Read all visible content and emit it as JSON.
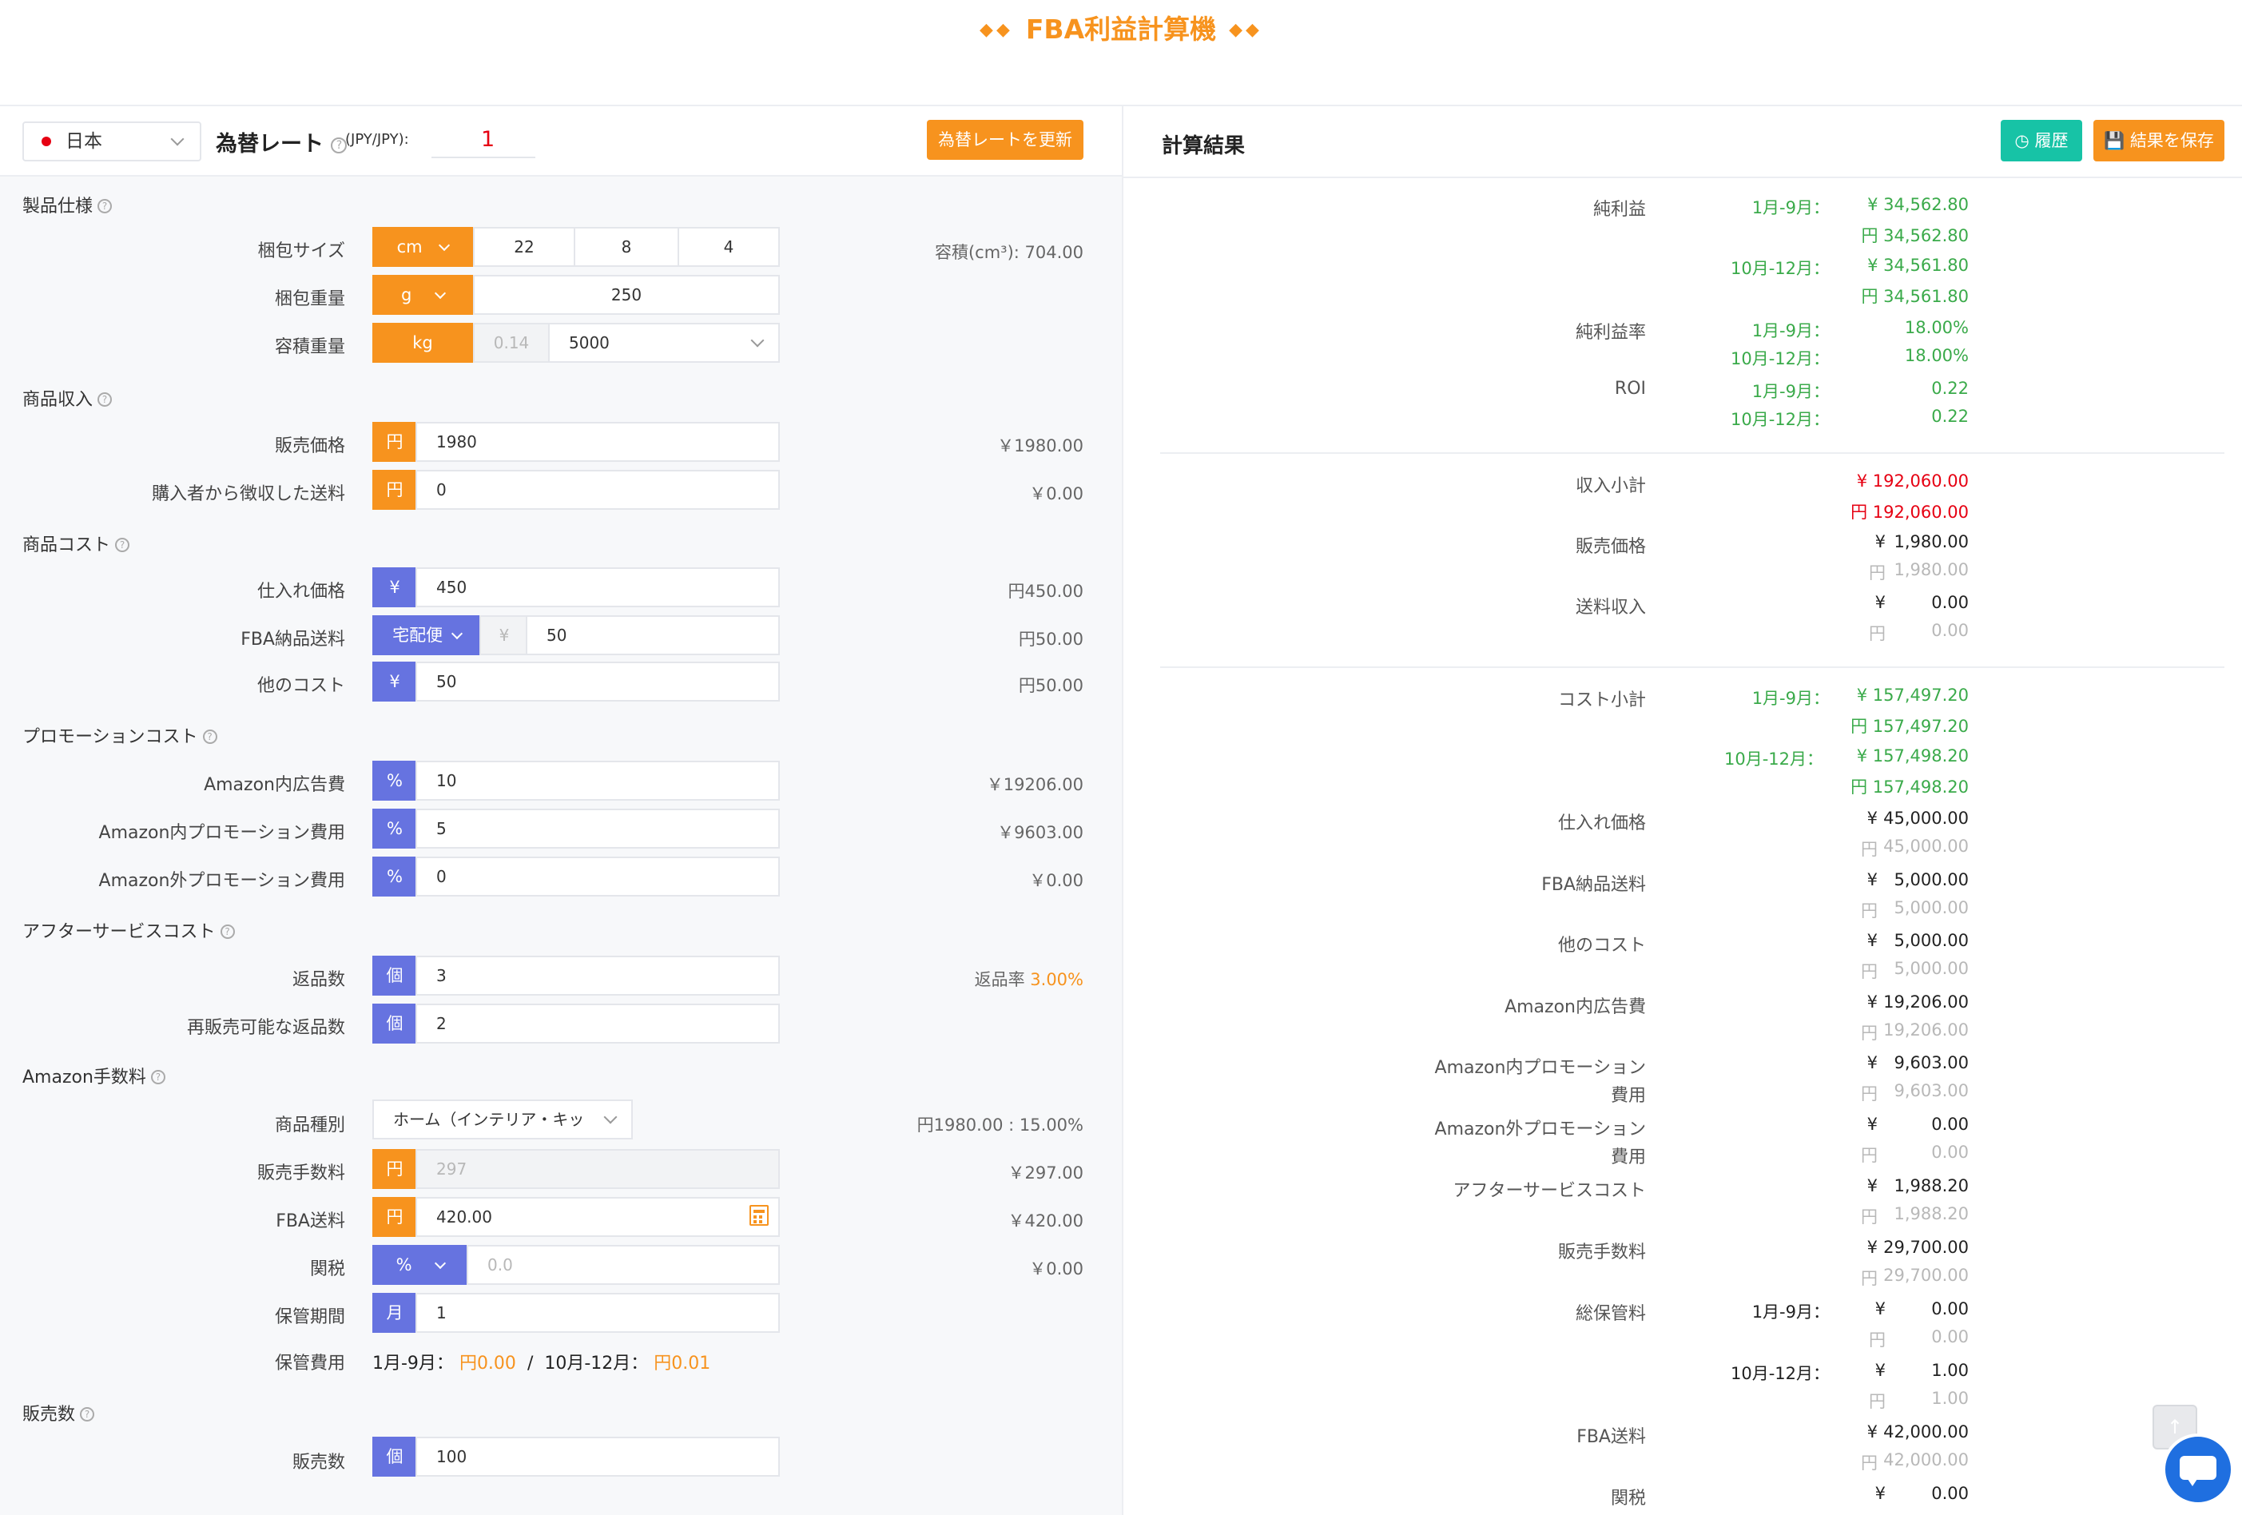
{
  "header": {
    "title": "FBA利益計算機",
    "deco_left": "◆◆",
    "deco_right": "◆◆"
  },
  "rate_bar": {
    "country": "日本",
    "label": "為替レート",
    "unit": "(JPY/JPY):",
    "rate_value": "1",
    "update_button": "為替レートを更新"
  },
  "colors": {
    "accent": "#f7931e",
    "purple": "#6673e0",
    "teal": "#17c3a6",
    "green": "#3aaa4a",
    "red": "#e60012"
  },
  "sections": {
    "spec": "製品仕様",
    "income": "商品収入",
    "cost": "商品コスト",
    "promo": "プロモーションコスト",
    "after": "アフターサービスコスト",
    "fee": "Amazon手数料",
    "sales": "販売数"
  },
  "spec": {
    "size_label": "梱包サイズ",
    "size_unit": "cm",
    "dims": [
      "22",
      "8",
      "4"
    ],
    "volume_text": "容積(cm³): 704.00",
    "weight_label": "梱包重量",
    "weight_unit": "g",
    "weight_value": "250",
    "volweight_label": "容積重量",
    "volweight_unit": "kg",
    "volweight_value": "0.14",
    "volweight_divisor": "5000"
  },
  "income": {
    "price_label": "販売価格",
    "price_unit": "円",
    "price_value": "1980",
    "price_result": "￥1980.00",
    "shipping_label": "購入者から徴収した送料",
    "shipping_unit": "円",
    "shipping_value": "0",
    "shipping_result": "￥0.00"
  },
  "cost": {
    "purchase_label": "仕入れ価格",
    "purchase_unit": "¥",
    "purchase_value": "450",
    "purchase_result": "円450.00",
    "fba_ship_label": "FBA納品送料",
    "fba_ship_method": "宅配便",
    "fba_ship_unit": "¥",
    "fba_ship_value": "50",
    "fba_ship_result": "円50.00",
    "other_label": "他のコスト",
    "other_unit": "¥",
    "other_value": "50",
    "other_result": "円50.00"
  },
  "promo": {
    "ad_label": "Amazon内広告費",
    "ad_unit": "%",
    "ad_value": "10",
    "ad_result": "￥19206.00",
    "in_label": "Amazon内プロモーション費用",
    "in_unit": "%",
    "in_value": "5",
    "in_result": "￥9603.00",
    "out_label": "Amazon外プロモーション費用",
    "out_unit": "%",
    "out_value": "0",
    "out_result": "￥0.00"
  },
  "after": {
    "returns_label": "返品数",
    "returns_unit": "個",
    "returns_value": "3",
    "return_rate_label": "返品率",
    "return_rate_value": "3.00%",
    "resell_label": "再販売可能な返品数",
    "resell_unit": "個",
    "resell_value": "2"
  },
  "fee": {
    "category_label": "商品種別",
    "category_value": "ホーム（インテリア・キッ",
    "category_result": "円1980.00 : 15.00%",
    "commission_label": "販売手数料",
    "commission_unit": "円",
    "commission_value": "297",
    "commission_result": "￥297.00",
    "fba_label": "FBA送料",
    "fba_unit": "円",
    "fba_value": "420.00",
    "fba_result": "￥420.00",
    "tariff_label": "関税",
    "tariff_unit": "%",
    "tariff_value": "0.0",
    "tariff_result": "￥0.00",
    "storage_period_label": "保管期間",
    "storage_period_unit": "月",
    "storage_period_value": "1",
    "storage_fee_label": "保管費用",
    "storage_p1": "1月-9月：",
    "storage_p1_value": "円0.00",
    "storage_sep": "/",
    "storage_p2": "10月-12月：",
    "storage_p2_value": "円0.01"
  },
  "sales": {
    "count_label": "販売数",
    "count_unit": "個",
    "count_value": "100"
  },
  "results": {
    "title": "計算結果",
    "history_button": "履歴",
    "save_button": "結果を保存",
    "net_profit_label": "純利益",
    "p1": "1月-9月：",
    "p2": "10月-12月：",
    "net_profit_p1_yen": "¥  34,562.80",
    "net_profit_p1_en": "円 34,562.80",
    "net_profit_p2_yen": "¥  34,561.80",
    "net_profit_p2_en": "円 34,561.80",
    "margin_label": "純利益率",
    "margin_p1": "18.00%",
    "margin_p2": "18.00%",
    "roi_label": "ROI",
    "roi_p1": "0.22",
    "roi_p2": "0.22",
    "income_subtotal_label": "収入小計",
    "income_subtotal_yen": "¥  192,060.00",
    "income_subtotal_en": "円 192,060.00",
    "sale_price_label": "販売価格",
    "sale_price_yen": "1,980.00",
    "sale_price_en": "1,980.00",
    "ship_income_label": "送料収入",
    "ship_income_yen": "0.00",
    "ship_income_en": "0.00",
    "cost_subtotal_label": "コスト小計",
    "cost_p1_yen": "¥  157,497.20",
    "cost_p1_en": "円 157,497.20",
    "cost_p2_yen": "¥  157,498.20",
    "cost_p2_en": "円 157,498.20",
    "items": [
      {
        "label": "仕入れ価格",
        "yen": "45,000.00",
        "en": "45,000.00"
      },
      {
        "label": "FBA納品送料",
        "yen": "5,000.00",
        "en": "5,000.00"
      },
      {
        "label": "他のコスト",
        "yen": "5,000.00",
        "en": "5,000.00"
      },
      {
        "label": "Amazon内広告費",
        "yen": "19,206.00",
        "en": "19,206.00"
      },
      {
        "label": "Amazon内プロモーション",
        "label2": "費用",
        "yen": "9,603.00",
        "en": "9,603.00"
      },
      {
        "label": "Amazon外プロモーション",
        "label2": "費用",
        "yen": "0.00",
        "en": "0.00"
      },
      {
        "label": "アフターサービスコスト",
        "yen": "1,988.20",
        "en": "1,988.20"
      },
      {
        "label": "販売手数料",
        "yen": "29,700.00",
        "en": "29,700.00"
      }
    ],
    "storage_total_label": "総保管料",
    "storage_p1_yen": "0.00",
    "storage_p1_en": "0.00",
    "storage_p2_yen": "1.00",
    "storage_p2_en": "1.00",
    "fba_label": "FBA送料",
    "fba_yen": "42,000.00",
    "fba_en": "42,000.00",
    "tariff_label": "関税",
    "tariff_yen": "0.00",
    "yen_sym": "¥",
    "en_sym": "円"
  }
}
